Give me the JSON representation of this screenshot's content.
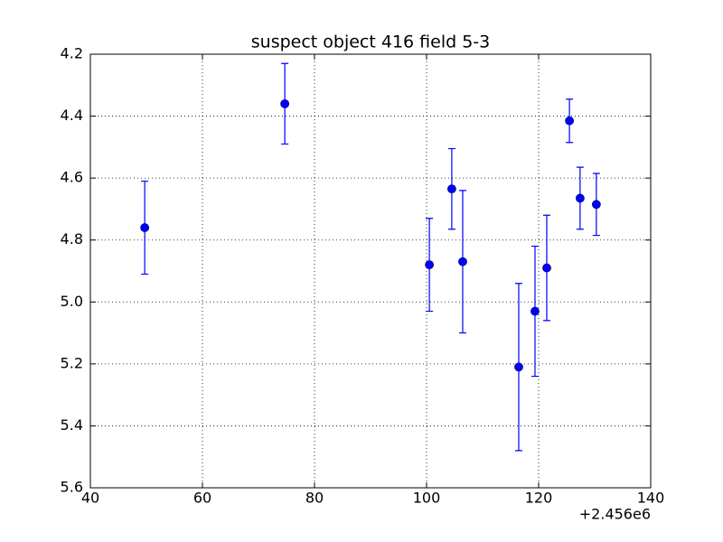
{
  "chart_data": {
    "type": "errorbar",
    "title": "suspect object 416 field 5-3",
    "x_offset_label": "+2.456e6",
    "series": [
      {
        "color": "#0000ff",
        "x": [
          49.7,
          74.7,
          100.5,
          104.5,
          106.45,
          116.45,
          119.35,
          121.45,
          125.5,
          127.4,
          130.3
        ],
        "values": [
          4.76,
          4.36,
          4.88,
          4.635,
          4.87,
          5.21,
          5.03,
          4.89,
          4.415,
          4.665,
          4.685
        ],
        "errors": [
          0.15,
          0.13,
          0.15,
          0.13,
          0.23,
          0.27,
          0.21,
          0.17,
          0.07,
          0.1,
          0.1
        ]
      }
    ],
    "xlim": [
      40,
      140
    ],
    "xticks": [
      40,
      60,
      80,
      100,
      120,
      140
    ],
    "ylim": [
      5.6,
      4.2
    ],
    "yticks": [
      4.2,
      4.4,
      4.6,
      4.8,
      {
        "value": 5,
        "label": "5.0"
      },
      5.2,
      5.4,
      5.6
    ],
    "grid": true
  }
}
